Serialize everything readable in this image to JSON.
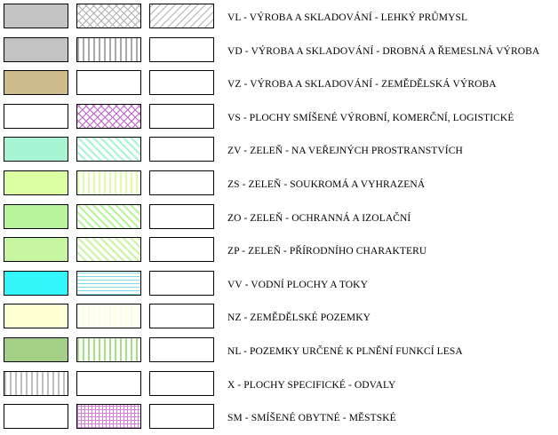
{
  "rows": [
    {
      "label": "VL - VÝROBA A SKLADOVÁNÍ - LEHKÝ PRŮMYSL",
      "swatches": [
        {
          "fill": "#c3c3c3",
          "pattern": "none"
        },
        {
          "fill": "#ffffff",
          "pattern": "crosshatch",
          "color": "#b0b0b0"
        },
        {
          "fill": "#ffffff",
          "pattern": "diag-left",
          "color": "#b0b0b0"
        }
      ]
    },
    {
      "label": "VD - VÝROBA A SKLADOVÁNÍ - DROBNÁ A ŘEMESLNÁ VÝROBA",
      "swatches": [
        {
          "fill": "#c3c3c3",
          "pattern": "none"
        },
        {
          "fill": "#ffffff",
          "pattern": "vertical",
          "color": "#a8a8a8"
        },
        {
          "fill": "#ffffff",
          "pattern": "none"
        }
      ]
    },
    {
      "label": "VZ - VÝROBA A SKLADOVÁNÍ - ZEMĚDĚLSKÁ VÝROBA",
      "swatches": [
        {
          "fill": "#cdbb8b",
          "pattern": "none"
        },
        {
          "fill": "#ffffff",
          "pattern": "none"
        },
        {
          "fill": "#ffffff",
          "pattern": "none"
        }
      ]
    },
    {
      "label": "VS - PLOCHY SMÍŠENÉ VÝROBNÍ, KOMERČNÍ, LOGISTICKÉ",
      "swatches": [
        {
          "fill": "#ffffff",
          "pattern": "none"
        },
        {
          "fill": "#ffffff",
          "pattern": "crosshatch",
          "color": "#c060c8"
        },
        {
          "fill": "#ffffff",
          "pattern": "none"
        }
      ]
    },
    {
      "label": "ZV - ZELEŇ - NA VEŘEJNÝCH PROSTRANSTVÍCH",
      "swatches": [
        {
          "fill": "#a8f5d4",
          "pattern": "none"
        },
        {
          "fill": "#ffffff",
          "pattern": "diag-right",
          "color": "#a8f5d4"
        },
        {
          "fill": "#ffffff",
          "pattern": "none"
        }
      ]
    },
    {
      "label": "ZS - ZELEŇ - SOUKROMÁ A VYHRAZENÁ",
      "swatches": [
        {
          "fill": "#ddffa4",
          "pattern": "none"
        },
        {
          "fill": "#ffffff",
          "pattern": "vertical",
          "color": "#ddffa4"
        },
        {
          "fill": "#ffffff",
          "pattern": "none"
        }
      ]
    },
    {
      "label": "ZO - ZELEŇ - OCHRANNÁ A IZOLAČNÍ",
      "swatches": [
        {
          "fill": "#b8f59a",
          "pattern": "none"
        },
        {
          "fill": "#ffffff",
          "pattern": "diag-right",
          "color": "#b8f59a"
        },
        {
          "fill": "#ffffff",
          "pattern": "none"
        }
      ]
    },
    {
      "label": "ZP - ZELEŇ - PŘÍRODNÍHO CHARAKTERU",
      "swatches": [
        {
          "fill": "#c8f5a0",
          "pattern": "none"
        },
        {
          "fill": "#ffffff",
          "pattern": "diag-right",
          "color": "#c8f5a0"
        },
        {
          "fill": "#ffffff",
          "pattern": "none"
        }
      ]
    },
    {
      "label": "VV - VODNÍ PLOCHY A TOKY",
      "swatches": [
        {
          "fill": "#33f5fa",
          "pattern": "none"
        },
        {
          "fill": "#ffffff",
          "pattern": "horizontal",
          "color": "#7fd9e8"
        },
        {
          "fill": "#ffffff",
          "pattern": "none"
        }
      ]
    },
    {
      "label": "NZ - ZEMĚDĚLSKÉ POZEMKY",
      "swatches": [
        {
          "fill": "#ffffd4",
          "pattern": "none"
        },
        {
          "fill": "#ffffff",
          "pattern": "vertical",
          "color": "#ffffd4"
        },
        {
          "fill": "#ffffff",
          "pattern": "none"
        }
      ]
    },
    {
      "label": "NL - POZEMKY URČENÉ K PLNĚNÍ FUNKCÍ LESA",
      "swatches": [
        {
          "fill": "#a3cf86",
          "pattern": "none"
        },
        {
          "fill": "#ffffff",
          "pattern": "vertical",
          "color": "#a3e080"
        },
        {
          "fill": "#ffffff",
          "pattern": "none"
        }
      ]
    },
    {
      "label": "X - PLOCHY SPECIFICKÉ - ODVALY",
      "swatches": [
        {
          "fill": "#ffffff",
          "pattern": "vertical",
          "color": "#c0c0c0"
        },
        {
          "fill": "#ffffff",
          "pattern": "none"
        },
        {
          "fill": "#ffffff",
          "pattern": "none"
        }
      ]
    },
    {
      "label": "SM - SMÍŠENÉ OBYTNÉ - MĚSTSKÉ",
      "swatches": [
        {
          "fill": "#ffffff",
          "pattern": "none"
        },
        {
          "fill": "#ffffff",
          "pattern": "grid",
          "color": "#d080d8"
        },
        {
          "fill": "#ffffff",
          "pattern": "none"
        }
      ]
    }
  ]
}
